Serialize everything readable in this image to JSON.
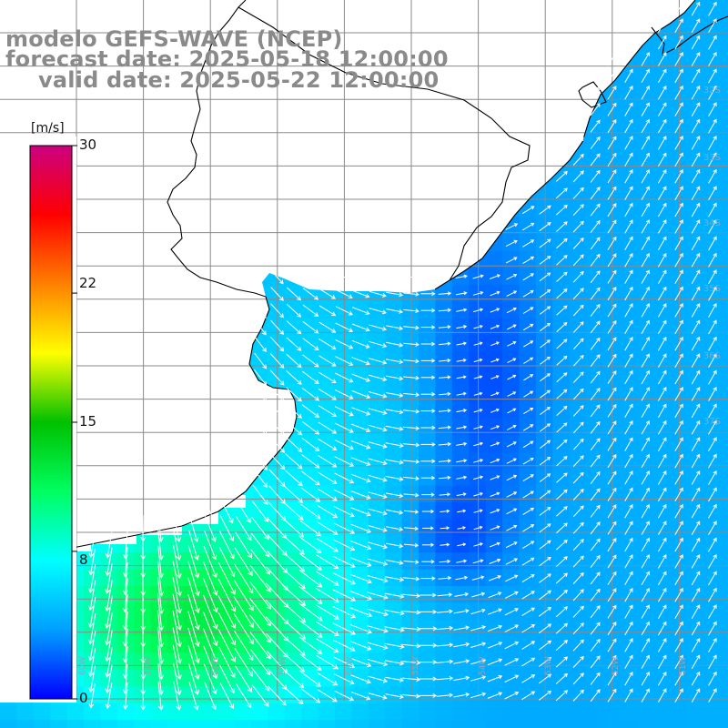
{
  "title": {
    "line1": "modelo GEFS-WAVE (NCEP)",
    "line2": "forecast date: 2025-05-18 12:00:00",
    "line3": "valid date: 2025-05-22 12:00:00"
  },
  "colorbar": {
    "unit": "[m/s]",
    "min": 0,
    "max": 30,
    "ticks": [
      "30",
      "22",
      "15",
      "8",
      "0"
    ],
    "tick_values": [
      30,
      22,
      15,
      8,
      0
    ],
    "colors": [
      "#0000ff",
      "#00a0ff",
      "#00ffff",
      "#00ff60",
      "#00c000",
      "#ffff00",
      "#ff8000",
      "#ff0000",
      "#cc0080"
    ]
  },
  "map": {
    "land_color": "#ffffff",
    "coastline_color": "#000000",
    "grid_color": "#8a8a8a",
    "lat_labels": [
      "32S",
      "33S",
      "34S",
      "35S",
      "36S",
      "37S"
    ],
    "lon_labels": [
      "60W",
      "59W",
      "58W",
      "57W",
      "56W",
      "55W",
      "54W",
      "53W",
      "52W",
      "51W",
      "50W"
    ]
  }
}
